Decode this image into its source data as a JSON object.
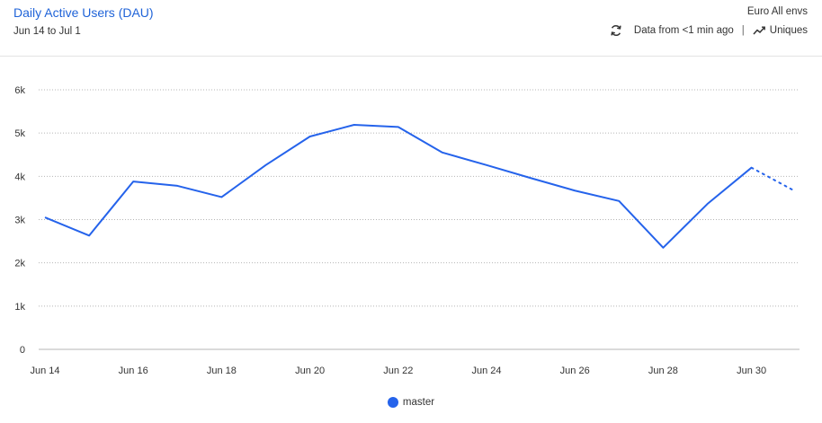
{
  "header": {
    "title": "Daily Active Users (DAU)",
    "date_range": "Jun 14 to Jul 1",
    "environment": "Euro All envs",
    "freshness": "Data from <1 min ago",
    "separator": "|",
    "metric_toggle": "Uniques",
    "icons": {
      "refresh": "refresh-icon",
      "metric": "trend-line-icon"
    }
  },
  "colors": {
    "accent": "#1f63d8",
    "series": "#2563eb",
    "grid": "#b5b5b5"
  },
  "legend": {
    "items": [
      {
        "label": "master",
        "color": "#2563eb"
      }
    ]
  },
  "chart_data": {
    "type": "line",
    "title": "Daily Active Users (DAU)",
    "subtitle": "Jun 14 to Jul 1",
    "xlabel": "",
    "ylabel": "",
    "x": [
      "Jun 14",
      "Jun 15",
      "Jun 16",
      "Jun 17",
      "Jun 18",
      "Jun 19",
      "Jun 20",
      "Jun 21",
      "Jun 22",
      "Jun 23",
      "Jun 24",
      "Jun 25",
      "Jun 26",
      "Jun 27",
      "Jun 28",
      "Jun 29",
      "Jun 30",
      "Jul 1"
    ],
    "x_tick_labels": [
      "Jun 14",
      "Jun 16",
      "Jun 18",
      "Jun 20",
      "Jun 22",
      "Jun 24",
      "Jun 26",
      "Jun 28",
      "Jun 30"
    ],
    "y_ticks": [
      0,
      1000,
      2000,
      3000,
      4000,
      5000,
      6000
    ],
    "y_tick_labels": [
      "0",
      "1k",
      "2k",
      "3k",
      "4k",
      "5k",
      "6k"
    ],
    "ylim": [
      0,
      6000
    ],
    "grid": true,
    "legend_position": "bottom-center",
    "series": [
      {
        "name": "master",
        "values": [
          3050,
          2630,
          3880,
          3780,
          3520,
          4260,
          4920,
          5190,
          5140,
          4550,
          4260,
          3960,
          3670,
          3430,
          2350,
          3360,
          4200,
          3650
        ],
        "partial_from_index": 16
      }
    ]
  }
}
